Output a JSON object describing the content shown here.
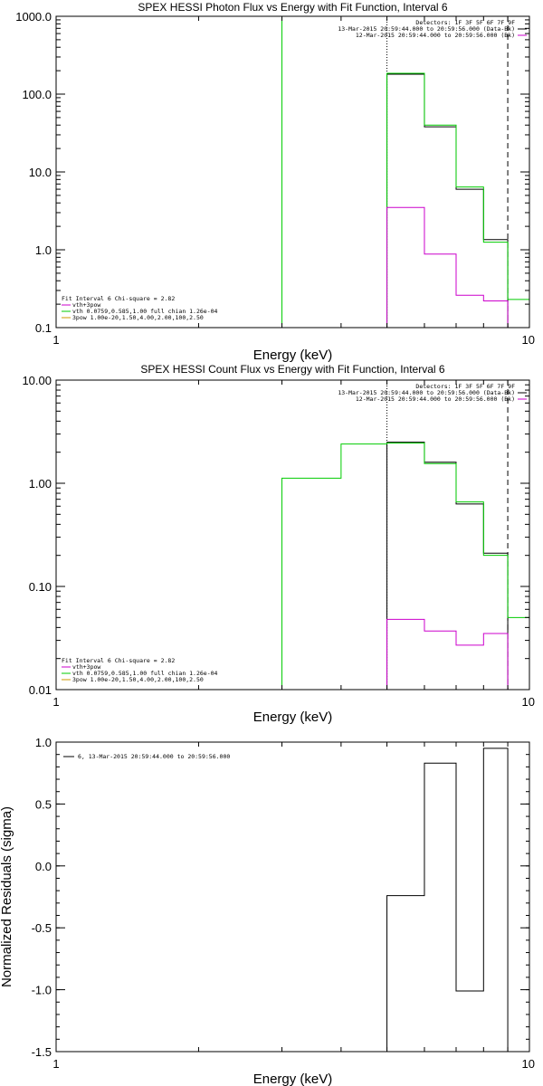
{
  "colors": {
    "black": "#000000",
    "magenta": "#cc00cc",
    "green": "#00cc00",
    "orange": "#cc9900"
  },
  "chart_data": [
    {
      "type": "line",
      "title": "SPEX HESSI Photon Flux vs Energy with Fit Function, Interval 6",
      "xlabel": "Energy (keV)",
      "ylabel": "",
      "xscale": "log",
      "yscale": "log",
      "xlim": [
        1,
        10
      ],
      "ylim": [
        0.1,
        1000
      ],
      "x_ticks": [
        {
          "value": 1,
          "label": "1"
        },
        {
          "value": 10,
          "label": "10"
        }
      ],
      "y_ticks": [
        {
          "value": 0.1,
          "label": "0.1"
        },
        {
          "value": 1,
          "label": "1.0"
        },
        {
          "value": 10,
          "label": "10.0"
        },
        {
          "value": 100,
          "label": "100.0"
        },
        {
          "value": 1000,
          "label": "1000.0"
        }
      ],
      "legend_tr": [
        "Detectors: 1F 3F 5F 6F 7F 9F",
        "13-Mar-2015 20:59:44.000 to 20:59:56.000 (Data-Bk)",
        "12-Mar-2015 20:59:44.000 to 20:59:56.000 (Bk)"
      ],
      "legend_bl": [
        "Fit Interval 6   Chi-square = 2.82",
        "vth+3pow",
        "vth 0.0759,0.585,1.00  full chian 1.26e-04",
        "3pow 1.00e-20,1.50,4.00,2.00,100,2.50"
      ],
      "vlines": [
        {
          "x": 3.0,
          "style": "solid",
          "color": "green"
        },
        {
          "x": 5.0,
          "style": "dotted",
          "color": "black"
        },
        {
          "x": 9.0,
          "style": "dashed",
          "color": "black"
        }
      ],
      "series": [
        {
          "color": "black",
          "edges": [
            5,
            6,
            7,
            8,
            9
          ],
          "values": [
            180,
            38,
            6,
            1.35
          ]
        },
        {
          "color": "green",
          "edges": [
            5,
            6,
            7,
            8,
            9,
            10
          ],
          "values": [
            185,
            40,
            6.4,
            1.25,
            0.23
          ]
        },
        {
          "color": "magenta",
          "edges": [
            5,
            6,
            7,
            8,
            9
          ],
          "values": [
            3.5,
            0.88,
            0.26,
            0.22
          ]
        }
      ]
    },
    {
      "type": "line",
      "title": "SPEX HESSI Count Flux vs Energy with Fit Function, Interval 6",
      "xlabel": "Energy (keV)",
      "ylabel": "",
      "xscale": "log",
      "yscale": "log",
      "xlim": [
        1,
        10
      ],
      "ylim": [
        0.01,
        10
      ],
      "x_ticks": [
        {
          "value": 1,
          "label": "1"
        },
        {
          "value": 10,
          "label": "10"
        }
      ],
      "y_ticks": [
        {
          "value": 0.01,
          "label": "0.01"
        },
        {
          "value": 0.1,
          "label": "0.10"
        },
        {
          "value": 1,
          "label": "1.00"
        },
        {
          "value": 10,
          "label": "10.00"
        }
      ],
      "legend_tr": [
        "Detectors: 1F 3F 5F 6F 7F 9F",
        "13-Mar-2015 20:59:44.000 to 20:59:56.000 (Data-Bk)",
        "12-Mar-2015 20:59:44.000 to 20:59:56.000 (Bk)"
      ],
      "legend_bl": [
        "Fit Interval 6   Chi-square = 2.82",
        "vth+3pow",
        "vth 0.0759,0.585,1.00  full chian 1.26e-04",
        "3pow 1.00e-20,1.50,4.00,2.00,100,2.50"
      ],
      "vlines": [
        {
          "x": 5.0,
          "style": "dotted",
          "color": "black"
        },
        {
          "x": 9.0,
          "style": "dashed",
          "color": "black"
        }
      ],
      "series": [
        {
          "color": "black",
          "edges": [
            5,
            6,
            7,
            8,
            9
          ],
          "values": [
            2.5,
            1.6,
            0.63,
            0.21
          ]
        },
        {
          "color": "green",
          "edges": [
            3,
            4,
            5,
            6,
            7,
            8,
            9,
            10
          ],
          "values": [
            1.12,
            2.4,
            2.45,
            1.55,
            0.66,
            0.2,
            0.05
          ]
        },
        {
          "color": "magenta",
          "edges": [
            5,
            6,
            7,
            8,
            9
          ],
          "values": [
            0.048,
            0.037,
            0.027,
            0.035
          ]
        }
      ]
    },
    {
      "type": "line",
      "title": "",
      "xlabel": "Energy (keV)",
      "ylabel": "Normalized Residuals (sigma)",
      "xscale": "log",
      "yscale": "linear",
      "xlim": [
        1,
        10
      ],
      "ylim": [
        -1.5,
        1.0
      ],
      "x_ticks": [
        {
          "value": 1,
          "label": "1"
        },
        {
          "value": 10,
          "label": "10"
        }
      ],
      "y_ticks": [
        {
          "value": -1.5,
          "label": "-1.5"
        },
        {
          "value": -1.0,
          "label": "-1.0"
        },
        {
          "value": -0.5,
          "label": "-0.5"
        },
        {
          "value": 0.0,
          "label": "0.0"
        },
        {
          "value": 0.5,
          "label": "0.5"
        },
        {
          "value": 1.0,
          "label": "1.0"
        }
      ],
      "legend_tl": [
        "6, 13-Mar-2015 20:59:44.000 to 20:59:56.000"
      ],
      "series": [
        {
          "color": "black",
          "edges": [
            5,
            6,
            7,
            8,
            9
          ],
          "values": [
            -0.24,
            0.83,
            -1.01,
            0.95
          ]
        }
      ]
    }
  ]
}
